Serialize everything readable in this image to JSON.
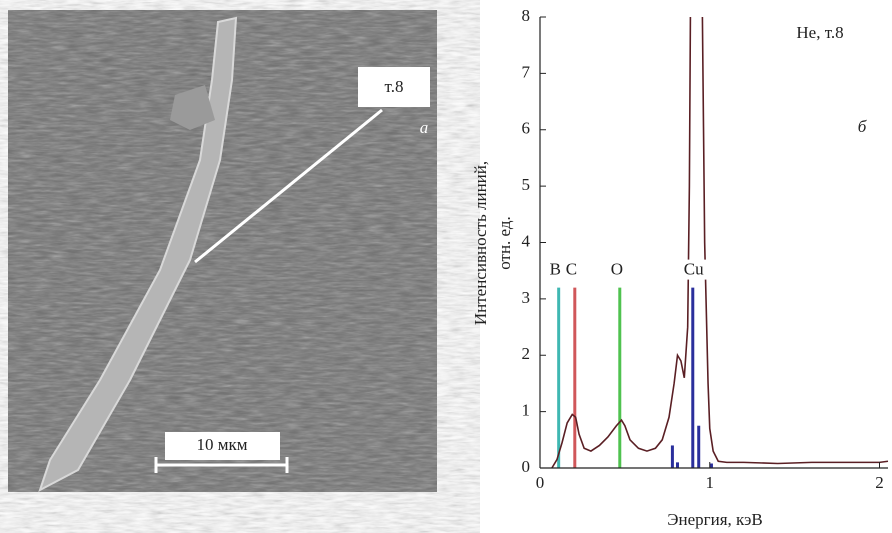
{
  "image_panel": {
    "point_label": "т.8",
    "panel_letter": "а",
    "scale_bar": "10 мкм"
  },
  "chart_data": {
    "type": "line",
    "annotation": "Не, т.8",
    "panel_letter": "б",
    "x_label": "Энергия, кэВ",
    "y_label": [
      "Интенсивность линий,",
      "отн. ед."
    ],
    "xlim": [
      0,
      2.05
    ],
    "ylim": [
      0,
      8
    ],
    "xticks": [
      0,
      1,
      2
    ],
    "yticks": [
      0,
      1,
      2,
      3,
      4,
      5,
      6,
      7,
      8
    ],
    "series": [
      {
        "color": "#5a1f24",
        "x": [
          0.07,
          0.1,
          0.13,
          0.16,
          0.19,
          0.21,
          0.23,
          0.26,
          0.3,
          0.35,
          0.4,
          0.45,
          0.48,
          0.5,
          0.53,
          0.58,
          0.63,
          0.68,
          0.72,
          0.76,
          0.79,
          0.81,
          0.83,
          0.85,
          0.87,
          0.88,
          0.89,
          0.95,
          0.97,
          0.99,
          1.0,
          1.02,
          1.05,
          1.1,
          1.2,
          1.4,
          1.6,
          1.8,
          2.0,
          2.05
        ],
        "values": [
          0,
          0.15,
          0.45,
          0.8,
          0.95,
          0.9,
          0.6,
          0.35,
          0.3,
          0.4,
          0.55,
          0.75,
          0.85,
          0.75,
          0.5,
          0.35,
          0.3,
          0.35,
          0.5,
          0.9,
          1.5,
          2.0,
          1.9,
          1.6,
          2.5,
          5,
          10,
          10,
          4,
          1.5,
          0.7,
          0.3,
          0.12,
          0.1,
          0.1,
          0.08,
          0.1,
          0.1,
          0.1,
          0.12
        ]
      }
    ],
    "element_lines": [
      {
        "name": "B",
        "color": "#3fb7b2",
        "x": 0.11,
        "value": 3.2
      },
      {
        "name": "C",
        "color": "#d0575a",
        "x": 0.205,
        "value": 3.2
      },
      {
        "name": "O",
        "color": "#4fc24f",
        "x": 0.47,
        "value": 3.2
      },
      {
        "name": "Cu",
        "color": "#2a2f9c",
        "x": 0.9,
        "value": 3.2
      }
    ],
    "minor_lines": {
      "color": "#2a2f9c",
      "x": [
        0.78,
        0.81,
        0.935,
        1.01
      ],
      "values": [
        0.4,
        0.1,
        0.75,
        0.08
      ]
    }
  }
}
